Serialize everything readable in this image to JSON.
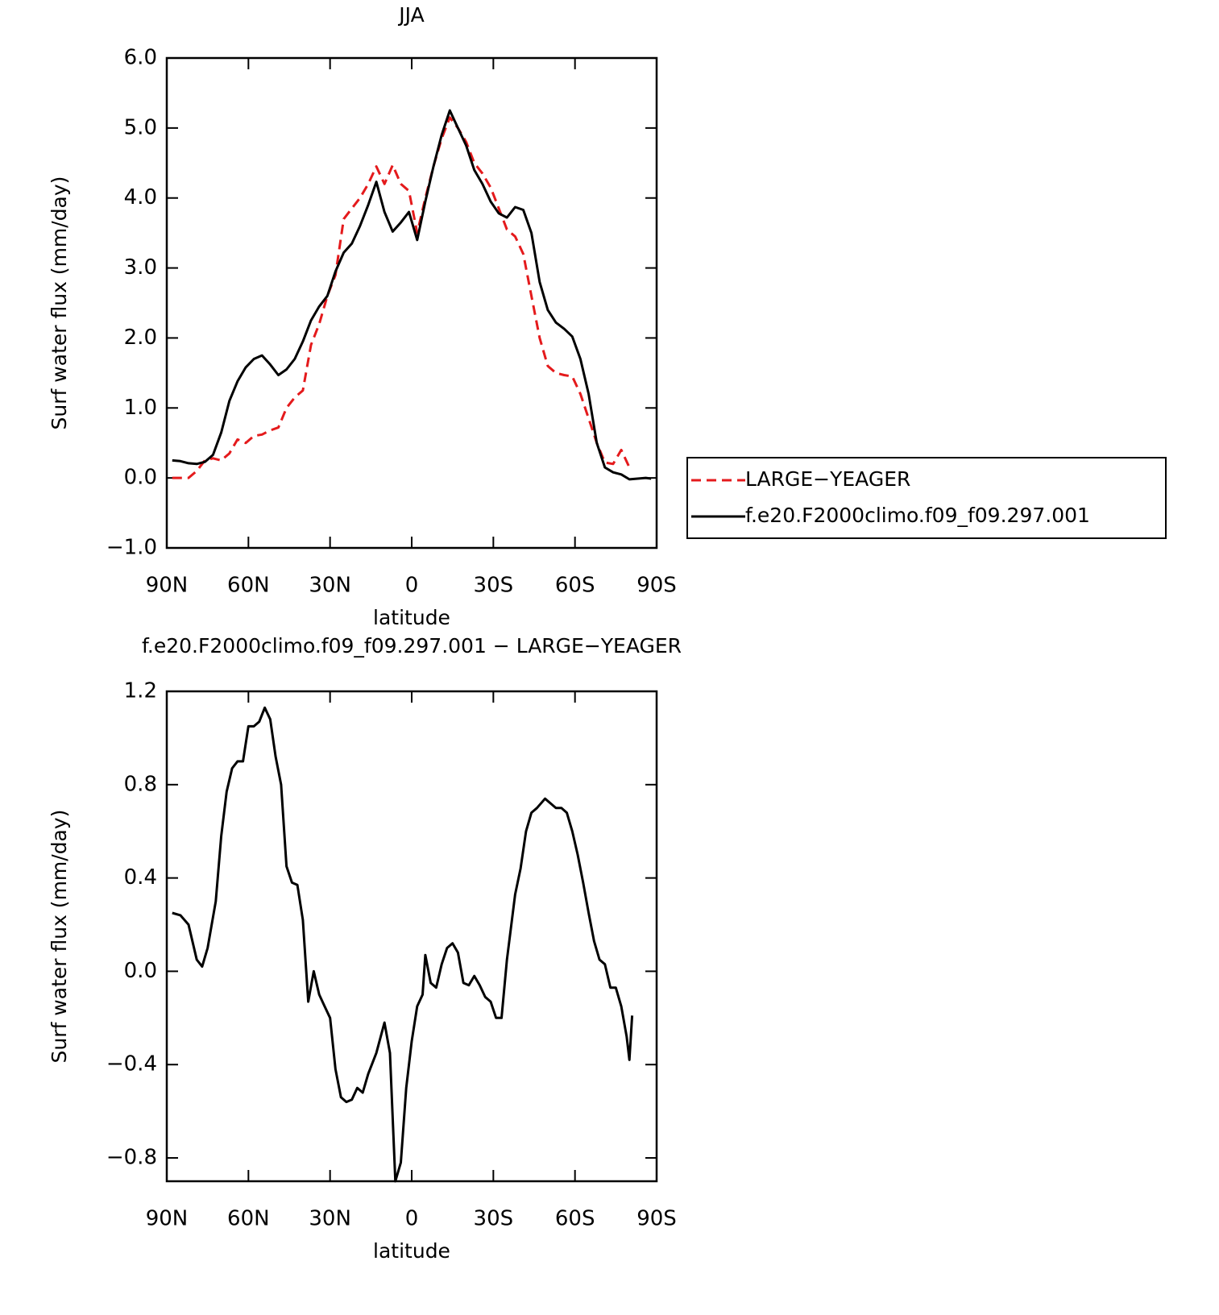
{
  "chart_data": [
    {
      "type": "line",
      "title": "JJA",
      "xlabel": "latitude",
      "ylabel": "Surf water flux (mm/day)",
      "x": [
        88,
        85,
        82,
        79,
        76,
        73,
        70,
        67,
        64,
        61,
        58,
        55,
        52,
        49,
        46,
        43,
        40,
        37,
        34,
        31,
        28,
        25,
        22,
        19,
        16,
        13,
        10,
        7,
        4,
        1,
        -2,
        -5,
        -8,
        -11,
        -14,
        -17,
        -20,
        -23,
        -26,
        -29,
        -32,
        -35,
        -38,
        -41,
        -44,
        -47,
        -50,
        -53,
        -56,
        -59,
        -62,
        -65,
        -68,
        -71,
        -74,
        -77,
        -80,
        -83,
        -86,
        -88
      ],
      "series": [
        {
          "name": "LARGE−YEAGER",
          "color": "#e41a1c",
          "linestyle": "dashed",
          "values": [
            0,
            0,
            0,
            0.1,
            0.25,
            0.28,
            0.25,
            0.35,
            0.55,
            0.5,
            0.6,
            0.62,
            0.68,
            0.72,
            1.0,
            1.15,
            1.25,
            1.9,
            2.2,
            2.6,
            2.9,
            3.7,
            3.85,
            4.0,
            4.2,
            4.45,
            4.2,
            4.47,
            4.2,
            4.1,
            3.5,
            4.0,
            4.45,
            4.85,
            5.15,
            5.0,
            4.8,
            4.5,
            4.35,
            4.15,
            3.85,
            3.55,
            3.45,
            3.2,
            2.6,
            2.0,
            1.6,
            1.5,
            1.47,
            1.45,
            1.2,
            0.85,
            0.5,
            0.22,
            0.2,
            0.4,
            0.15,
            null,
            null,
            null
          ]
        },
        {
          "name": "f.e20.F2000climo.f09_f09.297.001",
          "color": "#000000",
          "linestyle": "solid",
          "values": [
            0.25,
            0.24,
            0.21,
            0.2,
            0.23,
            0.33,
            0.65,
            1.1,
            1.38,
            1.58,
            1.7,
            1.75,
            1.62,
            1.47,
            1.55,
            1.7,
            1.95,
            2.25,
            2.45,
            2.6,
            2.95,
            3.22,
            3.35,
            3.6,
            3.9,
            4.23,
            3.8,
            3.52,
            3.65,
            3.8,
            3.4,
            3.95,
            4.45,
            4.9,
            5.25,
            5.0,
            4.75,
            4.4,
            4.2,
            3.95,
            3.78,
            3.72,
            3.87,
            3.83,
            3.5,
            2.8,
            2.4,
            2.22,
            2.13,
            2.02,
            1.7,
            1.2,
            0.5,
            0.15,
            0.08,
            0.05,
            -0.02,
            -0.01,
            0.0,
            -0.01
          ]
        }
      ],
      "xlim": [
        90,
        -90
      ],
      "xticks": [
        {
          "value": 90,
          "label": "90N"
        },
        {
          "value": 60,
          "label": "60N"
        },
        {
          "value": 30,
          "label": "30N"
        },
        0,
        {
          "value": -30,
          "label": "30S"
        },
        {
          "value": -60,
          "label": "60S"
        },
        {
          "value": -90,
          "label": "90S"
        }
      ],
      "ylim": [
        -1,
        6
      ],
      "yticks": [
        {
          "value": -1,
          "label": "−1.0"
        },
        {
          "value": 0,
          "label": "0.0"
        },
        {
          "value": 1,
          "label": "1.0"
        },
        {
          "value": 2,
          "label": "2.0"
        },
        {
          "value": 3,
          "label": "3.0"
        },
        {
          "value": 4,
          "label": "4.0"
        },
        {
          "value": 5,
          "label": "5.0"
        },
        {
          "value": 6,
          "label": "6.0"
        }
      ],
      "legend": "right"
    },
    {
      "type": "line",
      "title": "f.e20.F2000climo.f09_f09.297.001 − LARGE−YEAGER",
      "xlabel": "latitude",
      "ylabel": "Surf water flux (mm/day)",
      "x": [
        88,
        85,
        82,
        79,
        77,
        75,
        72,
        70,
        68,
        66,
        64,
        62,
        60,
        58,
        56,
        54,
        52,
        50,
        48,
        46,
        44,
        42,
        40,
        38,
        36,
        34,
        32,
        30,
        28,
        26,
        24,
        22,
        20,
        18,
        16,
        13,
        10,
        8,
        6,
        4,
        2,
        0,
        -2,
        -4,
        -5,
        -7,
        -9,
        -11,
        -13,
        -15,
        -17,
        -19,
        -21,
        -23,
        -25,
        -27,
        -29,
        -31,
        -33,
        -35,
        -38,
        -40,
        -42,
        -44,
        -46,
        -49,
        -51,
        -53,
        -55,
        -57,
        -59,
        -61,
        -63,
        -65,
        -67,
        -69,
        -71,
        -73,
        -75,
        -77,
        -79,
        -80,
        -81
      ],
      "values": [
        0.25,
        0.24,
        0.2,
        0.05,
        0.02,
        0.1,
        0.3,
        0.58,
        0.77,
        0.87,
        0.9,
        0.9,
        1.05,
        1.05,
        1.07,
        1.13,
        1.08,
        0.92,
        0.8,
        0.45,
        0.38,
        0.37,
        0.22,
        -0.13,
        0.0,
        -0.1,
        -0.15,
        -0.2,
        -0.42,
        -0.54,
        -0.56,
        -0.55,
        -0.5,
        -0.52,
        -0.44,
        -0.35,
        -0.22,
        -0.35,
        -0.9,
        -0.82,
        -0.5,
        -0.3,
        -0.15,
        -0.1,
        0.07,
        -0.05,
        -0.07,
        0.03,
        0.1,
        0.12,
        0.08,
        -0.05,
        -0.06,
        -0.02,
        -0.06,
        -0.11,
        -0.13,
        -0.2,
        -0.2,
        0.05,
        0.33,
        0.44,
        0.6,
        0.68,
        0.7,
        0.74,
        0.72,
        0.7,
        0.7,
        0.68,
        0.6,
        0.5,
        0.38,
        0.25,
        0.13,
        0.05,
        0.03,
        -0.07,
        -0.07,
        -0.15,
        -0.28,
        -0.38,
        -0.19
      ],
      "color": "#000000",
      "xlim": [
        90,
        -90
      ],
      "xticks": [
        {
          "value": 90,
          "label": "90N"
        },
        {
          "value": 60,
          "label": "60N"
        },
        {
          "value": 30,
          "label": "30N"
        },
        0,
        {
          "value": -30,
          "label": "30S"
        },
        {
          "value": -60,
          "label": "60S"
        },
        {
          "value": -90,
          "label": "90S"
        }
      ],
      "ylim": [
        -0.9,
        1.2
      ],
      "yticks": [
        {
          "value": -0.8,
          "label": "−0.8"
        },
        {
          "value": -0.4,
          "label": "−0.4"
        },
        {
          "value": 0,
          "label": "0.0"
        },
        0.4,
        0.8,
        1.2
      ]
    }
  ]
}
